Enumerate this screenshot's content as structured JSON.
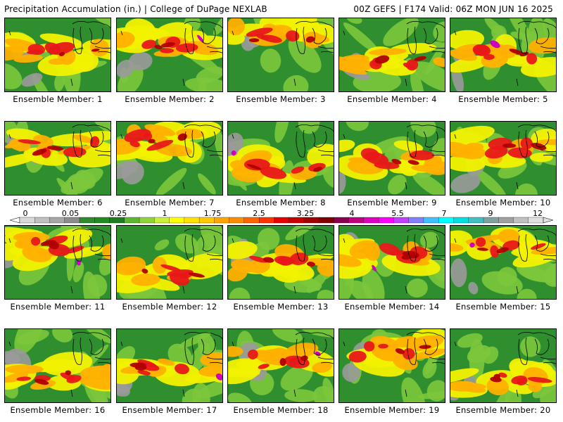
{
  "header": {
    "title": "Precipitation Accumulation (in.) | College of DuPage NEXLAB",
    "run_info": "00Z GEFS | F174 Valid: 06Z MON JUN 16 2025"
  },
  "members": [
    "Ensemble Member: 1",
    "Ensemble Member: 2",
    "Ensemble Member: 3",
    "Ensemble Member: 4",
    "Ensemble Member: 5",
    "Ensemble Member: 6",
    "Ensemble Member: 7",
    "Ensemble Member: 8",
    "Ensemble Member: 9",
    "Ensemble Member: 10",
    "Ensemble Member: 11",
    "Ensemble Member: 12",
    "Ensemble Member: 13",
    "Ensemble Member: 14",
    "Ensemble Member: 15",
    "Ensemble Member: 16",
    "Ensemble Member: 17",
    "Ensemble Member: 18",
    "Ensemble Member: 19",
    "Ensemble Member: 20"
  ],
  "colorbar": {
    "labels": [
      "0",
      "0.05",
      "0.25",
      "1",
      "1.75",
      "2.5",
      "3.25",
      "4",
      "5.5",
      "7",
      "9",
      "12"
    ],
    "colors": [
      "#d9d9d9",
      "#bfbfbf",
      "#a6a6a6",
      "#8c8c8c",
      "#2e8b2e",
      "#228b22",
      "#1e7d1e",
      "#5cb82e",
      "#8fd43a",
      "#c8f03c",
      "#ffff00",
      "#ffe000",
      "#ffc800",
      "#ffa500",
      "#ff8c00",
      "#ff6400",
      "#ff3200",
      "#e60000",
      "#c80000",
      "#a00000",
      "#800000",
      "#8b0050",
      "#c00080",
      "#e000c0",
      "#ff00ff",
      "#c040ff",
      "#8080ff",
      "#40c0ff",
      "#00ffff",
      "#00e0e0",
      "#40c0c0",
      "#80a0a0",
      "#a0a0a0",
      "#c0c0c0",
      "#e0e0e0"
    ]
  },
  "map_colors": {
    "dry": "#9a9a9a",
    "green": "#2f8f2f",
    "lightgreen": "#7cc63c",
    "yellow": "#f2f200",
    "orange": "#ffb000",
    "red": "#e81818",
    "darkred": "#b00000",
    "magenta": "#d000c0"
  }
}
